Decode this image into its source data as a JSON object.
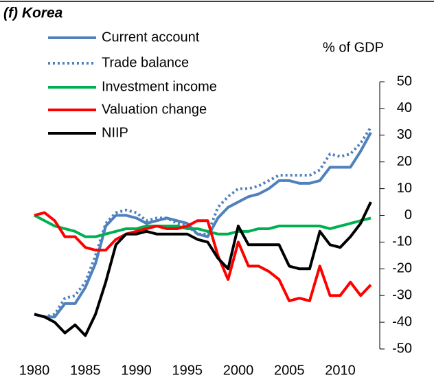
{
  "chart_data": {
    "type": "line",
    "title": "(f) Korea",
    "y_label": "% of GDP",
    "x": [
      1980,
      1981,
      1982,
      1983,
      1984,
      1985,
      1986,
      1987,
      1988,
      1989,
      1990,
      1991,
      1992,
      1993,
      1994,
      1995,
      1996,
      1997,
      1998,
      1999,
      2000,
      2001,
      2002,
      2003,
      2004,
      2005,
      2006,
      2007,
      2008,
      2009,
      2010,
      2011,
      2012,
      2013
    ],
    "xlim": [
      1980,
      2013
    ],
    "xticks": [
      1980,
      1985,
      1990,
      1995,
      2000,
      2005,
      2010
    ],
    "ylim": [
      -50,
      50
    ],
    "yticks": [
      -50,
      -40,
      -30,
      -20,
      -10,
      0,
      10,
      20,
      30,
      40,
      50
    ],
    "series": [
      {
        "name": "Current account",
        "color": "#4f81bd",
        "style": "solid",
        "values": [
          -37,
          -38,
          -38,
          -33,
          -33,
          -27,
          -18,
          -4,
          0,
          0,
          -1,
          -3,
          -2,
          -1,
          -2,
          -3,
          -7,
          -8,
          -1,
          3,
          5,
          7,
          8,
          10,
          13,
          13,
          12,
          12,
          13,
          18,
          18,
          18,
          24,
          31
        ]
      },
      {
        "name": "Trade balance",
        "color": "#4f81bd",
        "style": "dotted",
        "values": [
          -37,
          -38,
          -37,
          -31,
          -30,
          -25,
          -15,
          -3,
          1,
          2,
          1,
          -2,
          -1,
          -1,
          -3,
          -4,
          -7,
          -7,
          3,
          7,
          10,
          10,
          11,
          13,
          15,
          15,
          15,
          15,
          17,
          23,
          22,
          23,
          27,
          33
        ]
      },
      {
        "name": "Investment income",
        "color": "#00b050",
        "style": "solid",
        "values": [
          0,
          -2,
          -4,
          -5,
          -6,
          -8,
          -8,
          -7,
          -6,
          -5,
          -5,
          -4,
          -4,
          -4,
          -4,
          -5,
          -5,
          -6,
          -7,
          -7,
          -6,
          -6,
          -5,
          -5,
          -4,
          -4,
          -4,
          -4,
          -4,
          -5,
          -4,
          -3,
          -2,
          -1
        ]
      },
      {
        "name": "Valuation change",
        "color": "#ff0000",
        "style": "solid",
        "values": [
          0,
          1,
          -2,
          -8,
          -8,
          -12,
          -13,
          -13,
          -9,
          -7,
          -6,
          -5,
          -4,
          -5,
          -5,
          -4,
          -2,
          -2,
          -15,
          -24,
          -10,
          -19,
          -19,
          -21,
          -24,
          -32,
          -31,
          -32,
          -19,
          -30,
          -30,
          -25,
          -30,
          -26
        ]
      },
      {
        "name": "NIIP",
        "color": "#000000",
        "style": "solid",
        "values": [
          -37,
          -38,
          -40,
          -44,
          -41,
          -45,
          -37,
          -25,
          -11,
          -7,
          -7,
          -6,
          -7,
          -7,
          -7,
          -7,
          -9,
          -10,
          -16,
          -20,
          -4,
          -11,
          -11,
          -11,
          -11,
          -19,
          -20,
          -20,
          -6,
          -11,
          -12,
          -8,
          -3,
          5
        ]
      }
    ]
  }
}
